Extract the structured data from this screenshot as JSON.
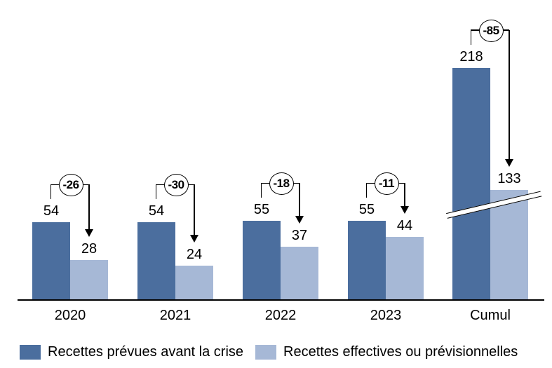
{
  "chart_data": {
    "type": "bar",
    "title": "",
    "categories": [
      "2020",
      "2021",
      "2022",
      "2023",
      "Cumul"
    ],
    "series": [
      {
        "name": "Recettes prévues avant la crise",
        "color": "#4B6E9E",
        "values": [
          54,
          54,
          55,
          55,
          218
        ]
      },
      {
        "name": "Recettes effectives ou prévisionnelles",
        "color": "#A6B8D6",
        "values": [
          28,
          24,
          37,
          44,
          133
        ]
      }
    ],
    "difference_annotations": [
      "-26",
      "-30",
      "-18",
      "-11",
      "-85"
    ],
    "axis_break": {
      "applies_to": "Cumul",
      "note": "diagonal break marks across Cumul bars"
    },
    "xlabel": "",
    "ylabel": "",
    "legend_position": "bottom",
    "grid": false,
    "colors": {
      "bar_dark": "#4B6E9E",
      "bar_light": "#A6B8D6",
      "axis": "#000000",
      "annotation": "#000000"
    }
  },
  "legend": {
    "items": [
      {
        "label": "Recettes prévues avant la crise",
        "color": "#4B6E9E"
      },
      {
        "label": "Recettes effectives ou prévisionnelles",
        "color": "#A6B8D6"
      }
    ]
  }
}
